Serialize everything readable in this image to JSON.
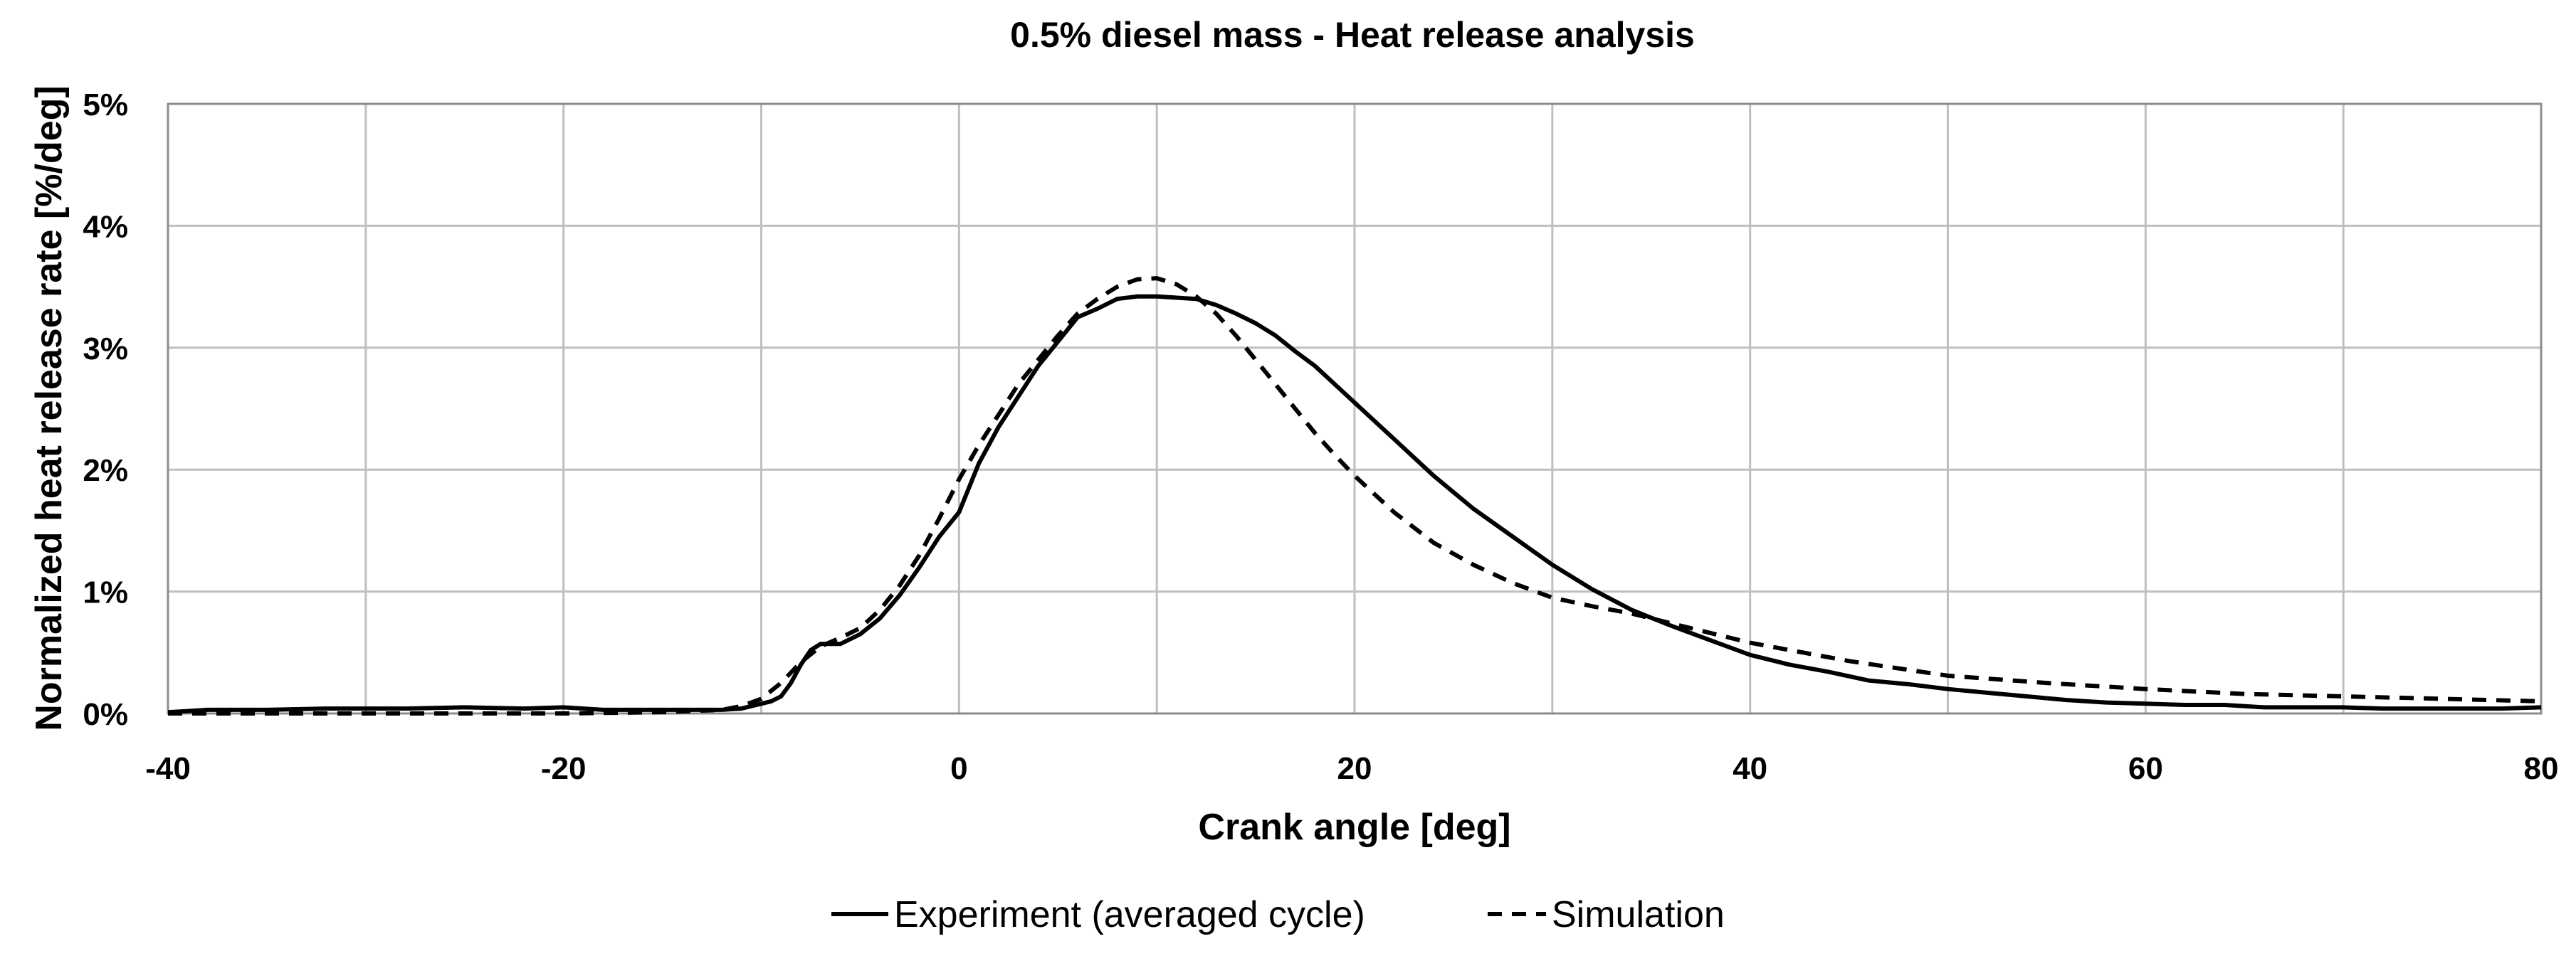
{
  "chart_data": {
    "type": "line",
    "title": "0.5% diesel mass - Heat release analysis",
    "xlabel": "Crank angle [deg]",
    "ylabel": "Normalized heat release rate  [%/deg]",
    "xlim": [
      -40,
      80
    ],
    "ylim": [
      0,
      5
    ],
    "x_ticks": [
      -40,
      -30,
      -20,
      -10,
      0,
      10,
      20,
      30,
      40,
      50,
      60,
      70,
      80
    ],
    "x_tick_labels": [
      {
        "value": -40,
        "label": "-40"
      },
      {
        "value": -20,
        "label": "-20"
      },
      {
        "value": 0,
        "label": "0"
      },
      {
        "value": 20,
        "label": "20"
      },
      {
        "value": 40,
        "label": "40"
      },
      {
        "value": 60,
        "label": "60"
      },
      {
        "value": 80,
        "label": "80"
      }
    ],
    "y_tick_labels": [
      {
        "value": 0,
        "label": "0%"
      },
      {
        "value": 1,
        "label": "1%"
      },
      {
        "value": 2,
        "label": "2%"
      },
      {
        "value": 3,
        "label": "3%"
      },
      {
        "value": 4,
        "label": "4%"
      },
      {
        "value": 5,
        "label": "5%"
      }
    ],
    "grid": true,
    "legend_position": "bottom",
    "series": [
      {
        "name": "Experiment (averaged cycle)",
        "style": "solid",
        "color": "#000000",
        "x": [
          -40,
          -38,
          -35,
          -32,
          -30,
          -28,
          -25,
          -22,
          -20,
          -18,
          -15,
          -12,
          -11,
          -10,
          -9.5,
          -9,
          -8.5,
          -8,
          -7.5,
          -7,
          -6,
          -5,
          -4,
          -3,
          -2,
          -1,
          0,
          1,
          2,
          3,
          4,
          5,
          6,
          7,
          8,
          9,
          10,
          11,
          12,
          13,
          14,
          15,
          16,
          17,
          18,
          19,
          20,
          22,
          24,
          26,
          28,
          30,
          32,
          34,
          36,
          38,
          40,
          42,
          44,
          46,
          48,
          50,
          52,
          54,
          56,
          58,
          60,
          62,
          64,
          66,
          68,
          70,
          72,
          74,
          76,
          78,
          80
        ],
        "y": [
          0.01,
          0.03,
          0.03,
          0.04,
          0.04,
          0.04,
          0.05,
          0.04,
          0.05,
          0.03,
          0.03,
          0.03,
          0.04,
          0.08,
          0.1,
          0.14,
          0.25,
          0.4,
          0.52,
          0.57,
          0.57,
          0.65,
          0.78,
          0.97,
          1.2,
          1.45,
          1.65,
          2.05,
          2.35,
          2.6,
          2.85,
          3.05,
          3.25,
          3.32,
          3.4,
          3.42,
          3.42,
          3.41,
          3.4,
          3.35,
          3.28,
          3.2,
          3.1,
          2.97,
          2.85,
          2.7,
          2.55,
          2.25,
          1.95,
          1.68,
          1.45,
          1.22,
          1.02,
          0.85,
          0.72,
          0.6,
          0.48,
          0.4,
          0.34,
          0.27,
          0.24,
          0.2,
          0.17,
          0.14,
          0.11,
          0.09,
          0.08,
          0.07,
          0.07,
          0.05,
          0.05,
          0.05,
          0.04,
          0.04,
          0.04,
          0.04,
          0.05
        ]
      },
      {
        "name": "Simulation",
        "style": "dashed",
        "color": "#000000",
        "x": [
          -40,
          -30,
          -20,
          -15,
          -12,
          -11,
          -10,
          -9,
          -8,
          -7,
          -6,
          -5,
          -4,
          -3,
          -2,
          -1,
          0,
          1,
          2,
          3,
          4,
          5,
          6,
          7,
          8,
          9,
          10,
          11,
          12,
          13,
          14,
          15,
          16,
          17,
          18,
          19,
          20,
          22,
          24,
          26,
          28,
          30,
          32,
          34,
          36,
          38,
          40,
          45,
          50,
          55,
          60,
          65,
          70,
          75,
          80
        ],
        "y": [
          0,
          0,
          0,
          0.01,
          0.03,
          0.06,
          0.12,
          0.25,
          0.42,
          0.55,
          0.62,
          0.7,
          0.85,
          1.05,
          1.3,
          1.6,
          1.92,
          2.2,
          2.45,
          2.7,
          2.9,
          3.1,
          3.28,
          3.4,
          3.5,
          3.56,
          3.57,
          3.52,
          3.42,
          3.28,
          3.1,
          2.9,
          2.7,
          2.5,
          2.3,
          2.12,
          1.95,
          1.65,
          1.4,
          1.22,
          1.07,
          0.95,
          0.88,
          0.82,
          0.74,
          0.66,
          0.58,
          0.43,
          0.31,
          0.25,
          0.2,
          0.16,
          0.14,
          0.12,
          0.1
        ]
      }
    ]
  }
}
